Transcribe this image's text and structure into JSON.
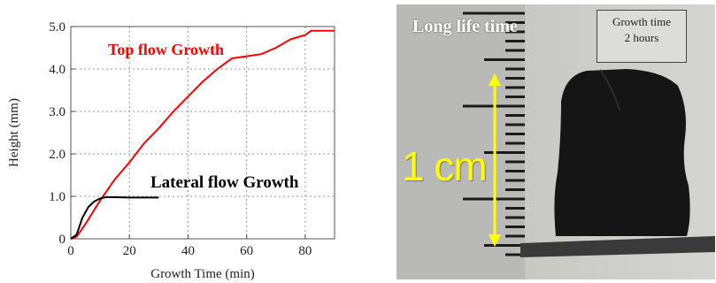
{
  "chart_data": {
    "type": "line",
    "xlabel": "Growth Time (min)",
    "ylabel": "Height (mm)",
    "xlim": [
      0,
      90
    ],
    "ylim": [
      0,
      5.0
    ],
    "xticks": [
      0,
      20,
      40,
      60,
      80
    ],
    "yticks": [
      0,
      1.0,
      2.0,
      3.0,
      4.0,
      5.0
    ],
    "ytick_labels": [
      "0",
      "1.0",
      "2.0",
      "3.0",
      "4.0",
      "5.0"
    ],
    "grid": "dotted",
    "series": [
      {
        "name": "Top flow Growth",
        "color": "#ff0000",
        "x": [
          0,
          2,
          5,
          10,
          15,
          20,
          25,
          30,
          35,
          40,
          45,
          50,
          55,
          60,
          65,
          70,
          75,
          80,
          82,
          90
        ],
        "y": [
          0,
          0.05,
          0.35,
          0.9,
          1.4,
          1.8,
          2.25,
          2.6,
          3.0,
          3.35,
          3.7,
          4.0,
          4.25,
          4.3,
          4.35,
          4.5,
          4.7,
          4.8,
          4.9,
          4.9
        ]
      },
      {
        "name": "Lateral flow Growth",
        "color": "#000000",
        "x": [
          0,
          2,
          4,
          6,
          8,
          10,
          12,
          15,
          20,
          25,
          30
        ],
        "y": [
          0,
          0.1,
          0.5,
          0.75,
          0.88,
          0.95,
          0.98,
          0.98,
          0.97,
          0.97,
          0.97
        ]
      }
    ]
  },
  "photo": {
    "title": "Long life time",
    "info_line1": "Growth time",
    "info_line2": "2 hours",
    "scale_label": "1 cm",
    "arrow_color": "#ffff00",
    "sample_color": "#151515"
  }
}
